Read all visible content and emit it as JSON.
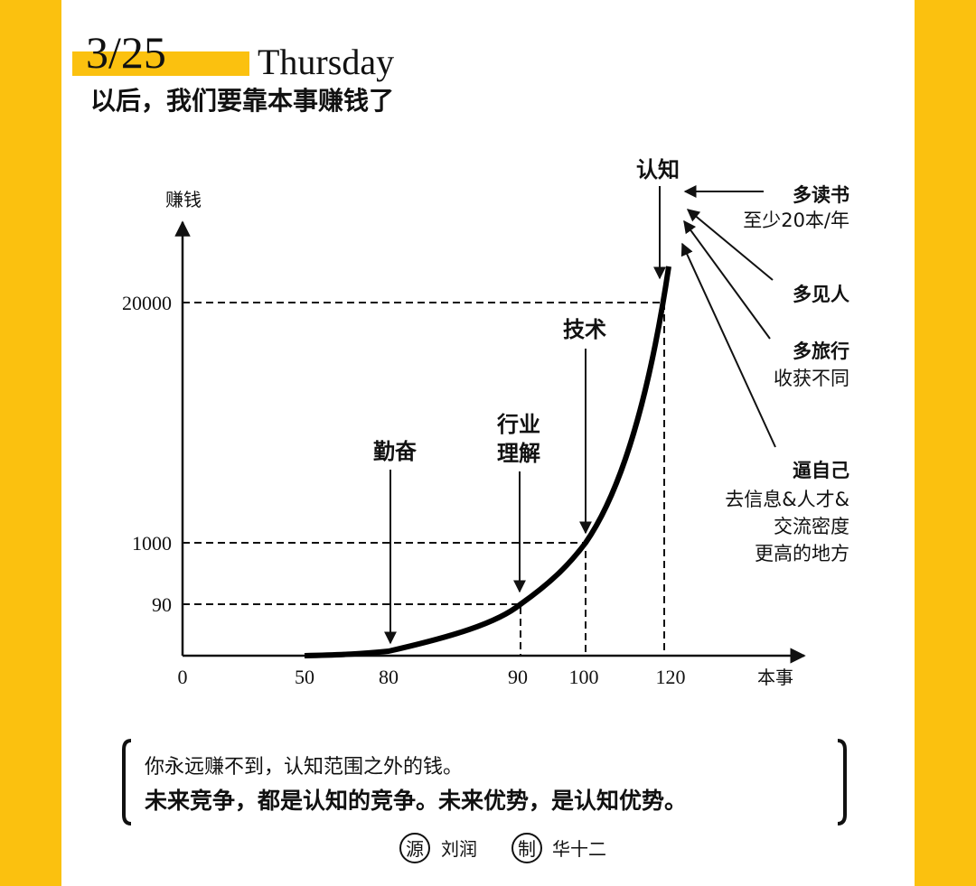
{
  "header": {
    "date": "3/25",
    "weekday": "Thursday",
    "subtitle": "以后，我们要靠本事赚钱了"
  },
  "diagram": {
    "y_axis_label": "赚钱",
    "x_axis_label": "本事",
    "y_ticks": [
      "20000",
      "1000",
      "90"
    ],
    "x_ticks": [
      "0",
      "50",
      "80",
      "90",
      "100",
      "120"
    ],
    "stages": [
      {
        "label": [
          "勤奋"
        ]
      },
      {
        "label": [
          "行业",
          "理解"
        ]
      },
      {
        "label": [
          "技术"
        ]
      },
      {
        "label": [
          "认知"
        ]
      }
    ],
    "sources": [
      {
        "title": "多读书",
        "lines": [
          "至少20本/年"
        ]
      },
      {
        "title": "多见人",
        "lines": []
      },
      {
        "title": "多旅行",
        "lines": [
          "收获不同"
        ]
      },
      {
        "title": "逼自己",
        "lines": [
          "去信息&人才&",
          "交流密度",
          "更高的地方"
        ]
      }
    ]
  },
  "quote": {
    "line1": "你永远赚不到，认知范围之外的钱。",
    "line2": "未来竞争，都是认知的竞争。未来优势，是认知优势。"
  },
  "credits": {
    "source_icon": "源",
    "source": "刘润",
    "maker_icon": "制",
    "maker": "华十二"
  }
}
